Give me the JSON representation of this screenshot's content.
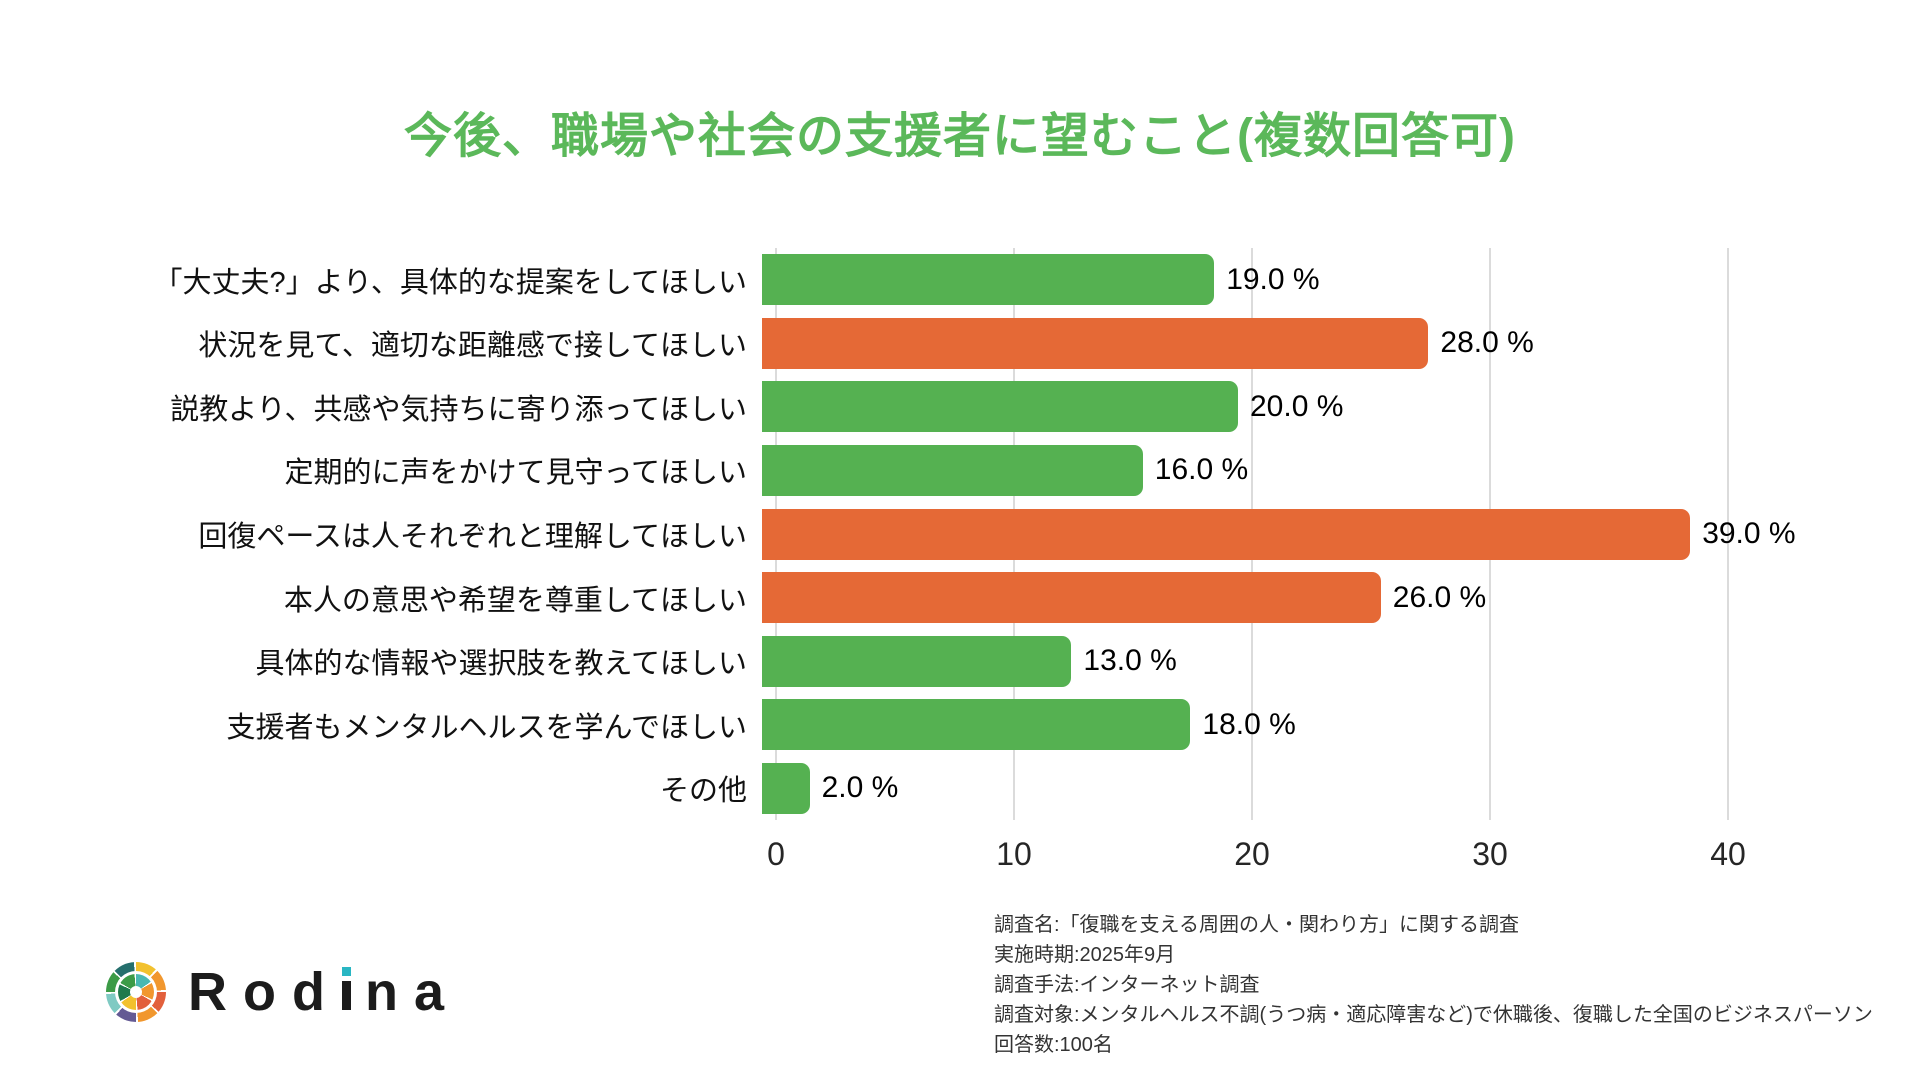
{
  "title": "今後、職場や社会の支援者に望むこと(複数回答可)",
  "chart_data": {
    "type": "bar",
    "orientation": "horizontal",
    "title": "今後、職場や社会の支援者に望むこと(複数回答可)",
    "categories": [
      "「大丈夫?」より、具体的な提案をしてほしい",
      "状況を見て、適切な距離感で接してほしい",
      "説教より、共感や気持ちに寄り添ってほしい",
      "定期的に声をかけて見守ってほしい",
      "回復ペースは人それぞれと理解してほしい",
      "本人の意思や希望を尊重してほしい",
      "具体的な情報や選択肢を教えてほしい",
      "支援者もメンタルヘルスを学んでほしい",
      "その他"
    ],
    "values": [
      19.0,
      28.0,
      20.0,
      16.0,
      39.0,
      26.0,
      13.0,
      18.0,
      2.0
    ],
    "value_labels": [
      "19.0 %",
      "28.0 %",
      "20.0 %",
      "16.0 %",
      "39.0 %",
      "26.0 %",
      "13.0 %",
      "18.0 %",
      "2.0 %"
    ],
    "bar_colors": [
      "green",
      "orange",
      "green",
      "green",
      "orange",
      "orange",
      "green",
      "green",
      "green"
    ],
    "colors": {
      "green": "#55B151",
      "orange": "#E56936"
    },
    "xlabel": "",
    "ylabel": "",
    "xlim": [
      0,
      40
    ],
    "x_ticks": [
      0,
      10,
      20,
      30,
      40
    ],
    "grid": true,
    "legend": false
  },
  "footer": {
    "logo": {
      "text": "Rodina",
      "accent_color": "#29B6C3"
    },
    "survey_notes": [
      "調査名:「復職を支える周囲の人・関わり方」に関する調査",
      "実施時期:2025年9月",
      "調査手法:インターネット調査",
      "調査対象:メンタルヘルス不調(うつ病・適応障害など)で休職後、復職した全国のビジネスパーソン",
      "回答数:100名"
    ]
  },
  "colors": {
    "title": "#5BB85A",
    "grid": "#DBDBDB",
    "text": "#111111",
    "background": "#FFFFFF"
  }
}
